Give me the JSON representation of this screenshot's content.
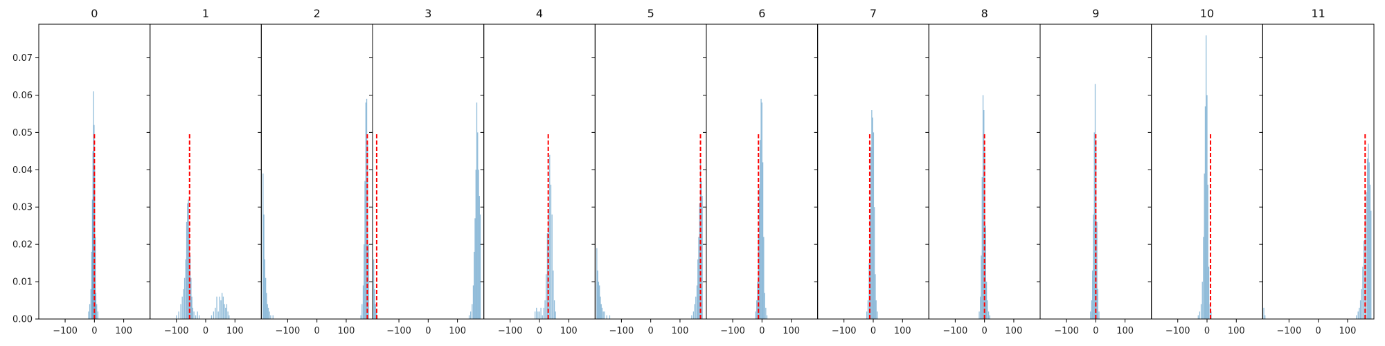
{
  "chart_data": {
    "type": "bar",
    "subtype": "histogram-small-multiples",
    "x_ticks": [
      -100,
      0,
      100
    ],
    "xlim": [
      -190,
      190
    ],
    "y_ticks": [
      0.0,
      0.01,
      0.02,
      0.03,
      0.04,
      0.05,
      0.06,
      0.07
    ],
    "y_tick_labels": [
      "0.00",
      "0.01",
      "0.02",
      "0.03",
      "0.04",
      "0.05",
      "0.06",
      "0.07"
    ],
    "ylim": [
      0,
      0.079
    ],
    "shared_y": true,
    "bar_color": "#1f77b4",
    "bar_alpha": 0.5,
    "reference_line": {
      "color": "#ff0000",
      "style": "dashed",
      "top": 0.05
    },
    "panels": [
      {
        "title": "0",
        "ref_x": 0,
        "bins": [
          [
            -20,
            0.002
          ],
          [
            -16,
            0.004
          ],
          [
            -12,
            0.008
          ],
          [
            -9,
            0.018
          ],
          [
            -7,
            0.032
          ],
          [
            -5,
            0.045
          ],
          [
            -3,
            0.061
          ],
          [
            -1,
            0.052
          ],
          [
            1,
            0.04
          ],
          [
            3,
            0.022
          ],
          [
            5,
            0.007
          ],
          [
            8,
            0.004
          ],
          [
            12,
            0.002
          ]
        ]
      },
      {
        "title": "1",
        "ref_x": -55,
        "bins": [
          [
            -100,
            0.001
          ],
          [
            -92,
            0.002
          ],
          [
            -85,
            0.004
          ],
          [
            -80,
            0.006
          ],
          [
            -76,
            0.008
          ],
          [
            -72,
            0.011
          ],
          [
            -68,
            0.016
          ],
          [
            -65,
            0.026
          ],
          [
            -62,
            0.031
          ],
          [
            -59,
            0.032
          ],
          [
            -56,
            0.024
          ],
          [
            -53,
            0.017
          ],
          [
            -50,
            0.011
          ],
          [
            -47,
            0.006
          ],
          [
            -44,
            0.003
          ],
          [
            -40,
            0.002
          ],
          [
            -34,
            0.001
          ],
          [
            -28,
            0.002
          ],
          [
            -22,
            0.001
          ],
          [
            20,
            0.001
          ],
          [
            27,
            0.002
          ],
          [
            33,
            0.003
          ],
          [
            38,
            0.006
          ],
          [
            43,
            0.002
          ],
          [
            48,
            0.006
          ],
          [
            52,
            0.005
          ],
          [
            56,
            0.007
          ],
          [
            60,
            0.006
          ],
          [
            64,
            0.004
          ],
          [
            68,
            0.003
          ],
          [
            72,
            0.004
          ],
          [
            76,
            0.002
          ],
          [
            80,
            0.001
          ]
        ]
      },
      {
        "title": "2",
        "ref_x": 172,
        "bins": [
          [
            -184,
            0.039
          ],
          [
            -181,
            0.028
          ],
          [
            -178,
            0.016
          ],
          [
            -175,
            0.011
          ],
          [
            -172,
            0.007
          ],
          [
            -169,
            0.004
          ],
          [
            -166,
            0.003
          ],
          [
            -162,
            0.002
          ],
          [
            -158,
            0.001
          ],
          [
            -150,
            0.001
          ],
          [
            150,
            0.001
          ],
          [
            154,
            0.004
          ],
          [
            158,
            0.009
          ],
          [
            161,
            0.02
          ],
          [
            164,
            0.037
          ],
          [
            167,
            0.058
          ],
          [
            170,
            0.059
          ],
          [
            173,
            0.047
          ],
          [
            176,
            0.02
          ]
        ]
      },
      {
        "title": "3",
        "ref_x": -176,
        "bins": [
          [
            -186,
            0.016
          ],
          [
            -183,
            0.008
          ],
          [
            -180,
            0.004
          ],
          [
            -177,
            0.002
          ],
          [
            -174,
            0.001
          ],
          [
            140,
            0.001
          ],
          [
            145,
            0.002
          ],
          [
            150,
            0.004
          ],
          [
            154,
            0.009
          ],
          [
            157,
            0.018
          ],
          [
            160,
            0.027
          ],
          [
            163,
            0.04
          ],
          [
            166,
            0.058
          ],
          [
            169,
            0.05
          ],
          [
            172,
            0.04
          ],
          [
            175,
            0.033
          ],
          [
            178,
            0.028
          ]
        ]
      },
      {
        "title": "4",
        "ref_x": 30,
        "bins": [
          [
            -15,
            0.002
          ],
          [
            -10,
            0.003
          ],
          [
            -5,
            0.002
          ],
          [
            0,
            0.002
          ],
          [
            5,
            0.003
          ],
          [
            10,
            0.001
          ],
          [
            15,
            0.003
          ],
          [
            19,
            0.005
          ],
          [
            23,
            0.012
          ],
          [
            27,
            0.023
          ],
          [
            31,
            0.029
          ],
          [
            35,
            0.044
          ],
          [
            39,
            0.036
          ],
          [
            43,
            0.028
          ],
          [
            47,
            0.013
          ],
          [
            51,
            0.005
          ],
          [
            55,
            0.002
          ]
        ]
      },
      {
        "title": "5",
        "ref_x": 170,
        "bins": [
          [
            -184,
            0.019
          ],
          [
            -181,
            0.013
          ],
          [
            -178,
            0.01
          ],
          [
            -175,
            0.009
          ],
          [
            -172,
            0.006
          ],
          [
            -169,
            0.004
          ],
          [
            -166,
            0.003
          ],
          [
            -162,
            0.002
          ],
          [
            -158,
            0.002
          ],
          [
            -150,
            0.001
          ],
          [
            -140,
            0.001
          ],
          [
            140,
            0.001
          ],
          [
            146,
            0.002
          ],
          [
            150,
            0.004
          ],
          [
            154,
            0.006
          ],
          [
            158,
            0.009
          ],
          [
            161,
            0.016
          ],
          [
            164,
            0.022
          ],
          [
            167,
            0.031
          ],
          [
            170,
            0.043
          ],
          [
            173,
            0.037
          ],
          [
            176,
            0.033
          ]
        ]
      },
      {
        "title": "6",
        "ref_x": -12,
        "bins": [
          [
            -22,
            0.002
          ],
          [
            -18,
            0.005
          ],
          [
            -15,
            0.01
          ],
          [
            -12,
            0.022
          ],
          [
            -9,
            0.035
          ],
          [
            -6,
            0.048
          ],
          [
            -3,
            0.059
          ],
          [
            0,
            0.058
          ],
          [
            3,
            0.042
          ],
          [
            6,
            0.022
          ],
          [
            9,
            0.007
          ],
          [
            13,
            0.003
          ],
          [
            17,
            0.001
          ]
        ]
      },
      {
        "title": "7",
        "ref_x": -12,
        "bins": [
          [
            -22,
            0.002
          ],
          [
            -18,
            0.005
          ],
          [
            -14,
            0.015
          ],
          [
            -11,
            0.028
          ],
          [
            -8,
            0.046
          ],
          [
            -5,
            0.056
          ],
          [
            -2,
            0.054
          ],
          [
            1,
            0.05
          ],
          [
            4,
            0.03
          ],
          [
            7,
            0.012
          ],
          [
            10,
            0.005
          ],
          [
            14,
            0.002
          ]
        ]
      },
      {
        "title": "8",
        "ref_x": 0,
        "bins": [
          [
            -18,
            0.002
          ],
          [
            -14,
            0.006
          ],
          [
            -11,
            0.017
          ],
          [
            -8,
            0.038
          ],
          [
            -5,
            0.06
          ],
          [
            -2,
            0.056
          ],
          [
            1,
            0.045
          ],
          [
            4,
            0.025
          ],
          [
            7,
            0.01
          ],
          [
            10,
            0.005
          ],
          [
            14,
            0.002
          ],
          [
            18,
            0.001
          ]
        ]
      },
      {
        "title": "9",
        "ref_x": 0,
        "bins": [
          [
            -18,
            0.002
          ],
          [
            -14,
            0.005
          ],
          [
            -11,
            0.013
          ],
          [
            -8,
            0.028
          ],
          [
            -5,
            0.05
          ],
          [
            -2,
            0.063
          ],
          [
            1,
            0.048
          ],
          [
            4,
            0.026
          ],
          [
            7,
            0.008
          ],
          [
            11,
            0.002
          ]
        ]
      },
      {
        "title": "10",
        "ref_x": 12,
        "bins": [
          [
            -30,
            0.001
          ],
          [
            -25,
            0.002
          ],
          [
            -20,
            0.004
          ],
          [
            -16,
            0.01
          ],
          [
            -12,
            0.022
          ],
          [
            -9,
            0.039
          ],
          [
            -6,
            0.057
          ],
          [
            -3,
            0.076
          ],
          [
            0,
            0.06
          ],
          [
            3,
            0.036
          ],
          [
            6,
            0.014
          ],
          [
            10,
            0.004
          ],
          [
            14,
            0.002
          ]
        ]
      },
      {
        "title": "11",
        "ref_x": 160,
        "bins": [
          [
            -186,
            0.003
          ],
          [
            -182,
            0.001
          ],
          [
            130,
            0.001
          ],
          [
            136,
            0.002
          ],
          [
            140,
            0.003
          ],
          [
            144,
            0.005
          ],
          [
            148,
            0.008
          ],
          [
            152,
            0.014
          ],
          [
            156,
            0.021
          ],
          [
            160,
            0.027
          ],
          [
            164,
            0.034
          ],
          [
            168,
            0.043
          ],
          [
            171,
            0.047
          ],
          [
            174,
            0.042
          ],
          [
            177,
            0.036
          ],
          [
            180,
            0.029
          ]
        ]
      }
    ]
  }
}
